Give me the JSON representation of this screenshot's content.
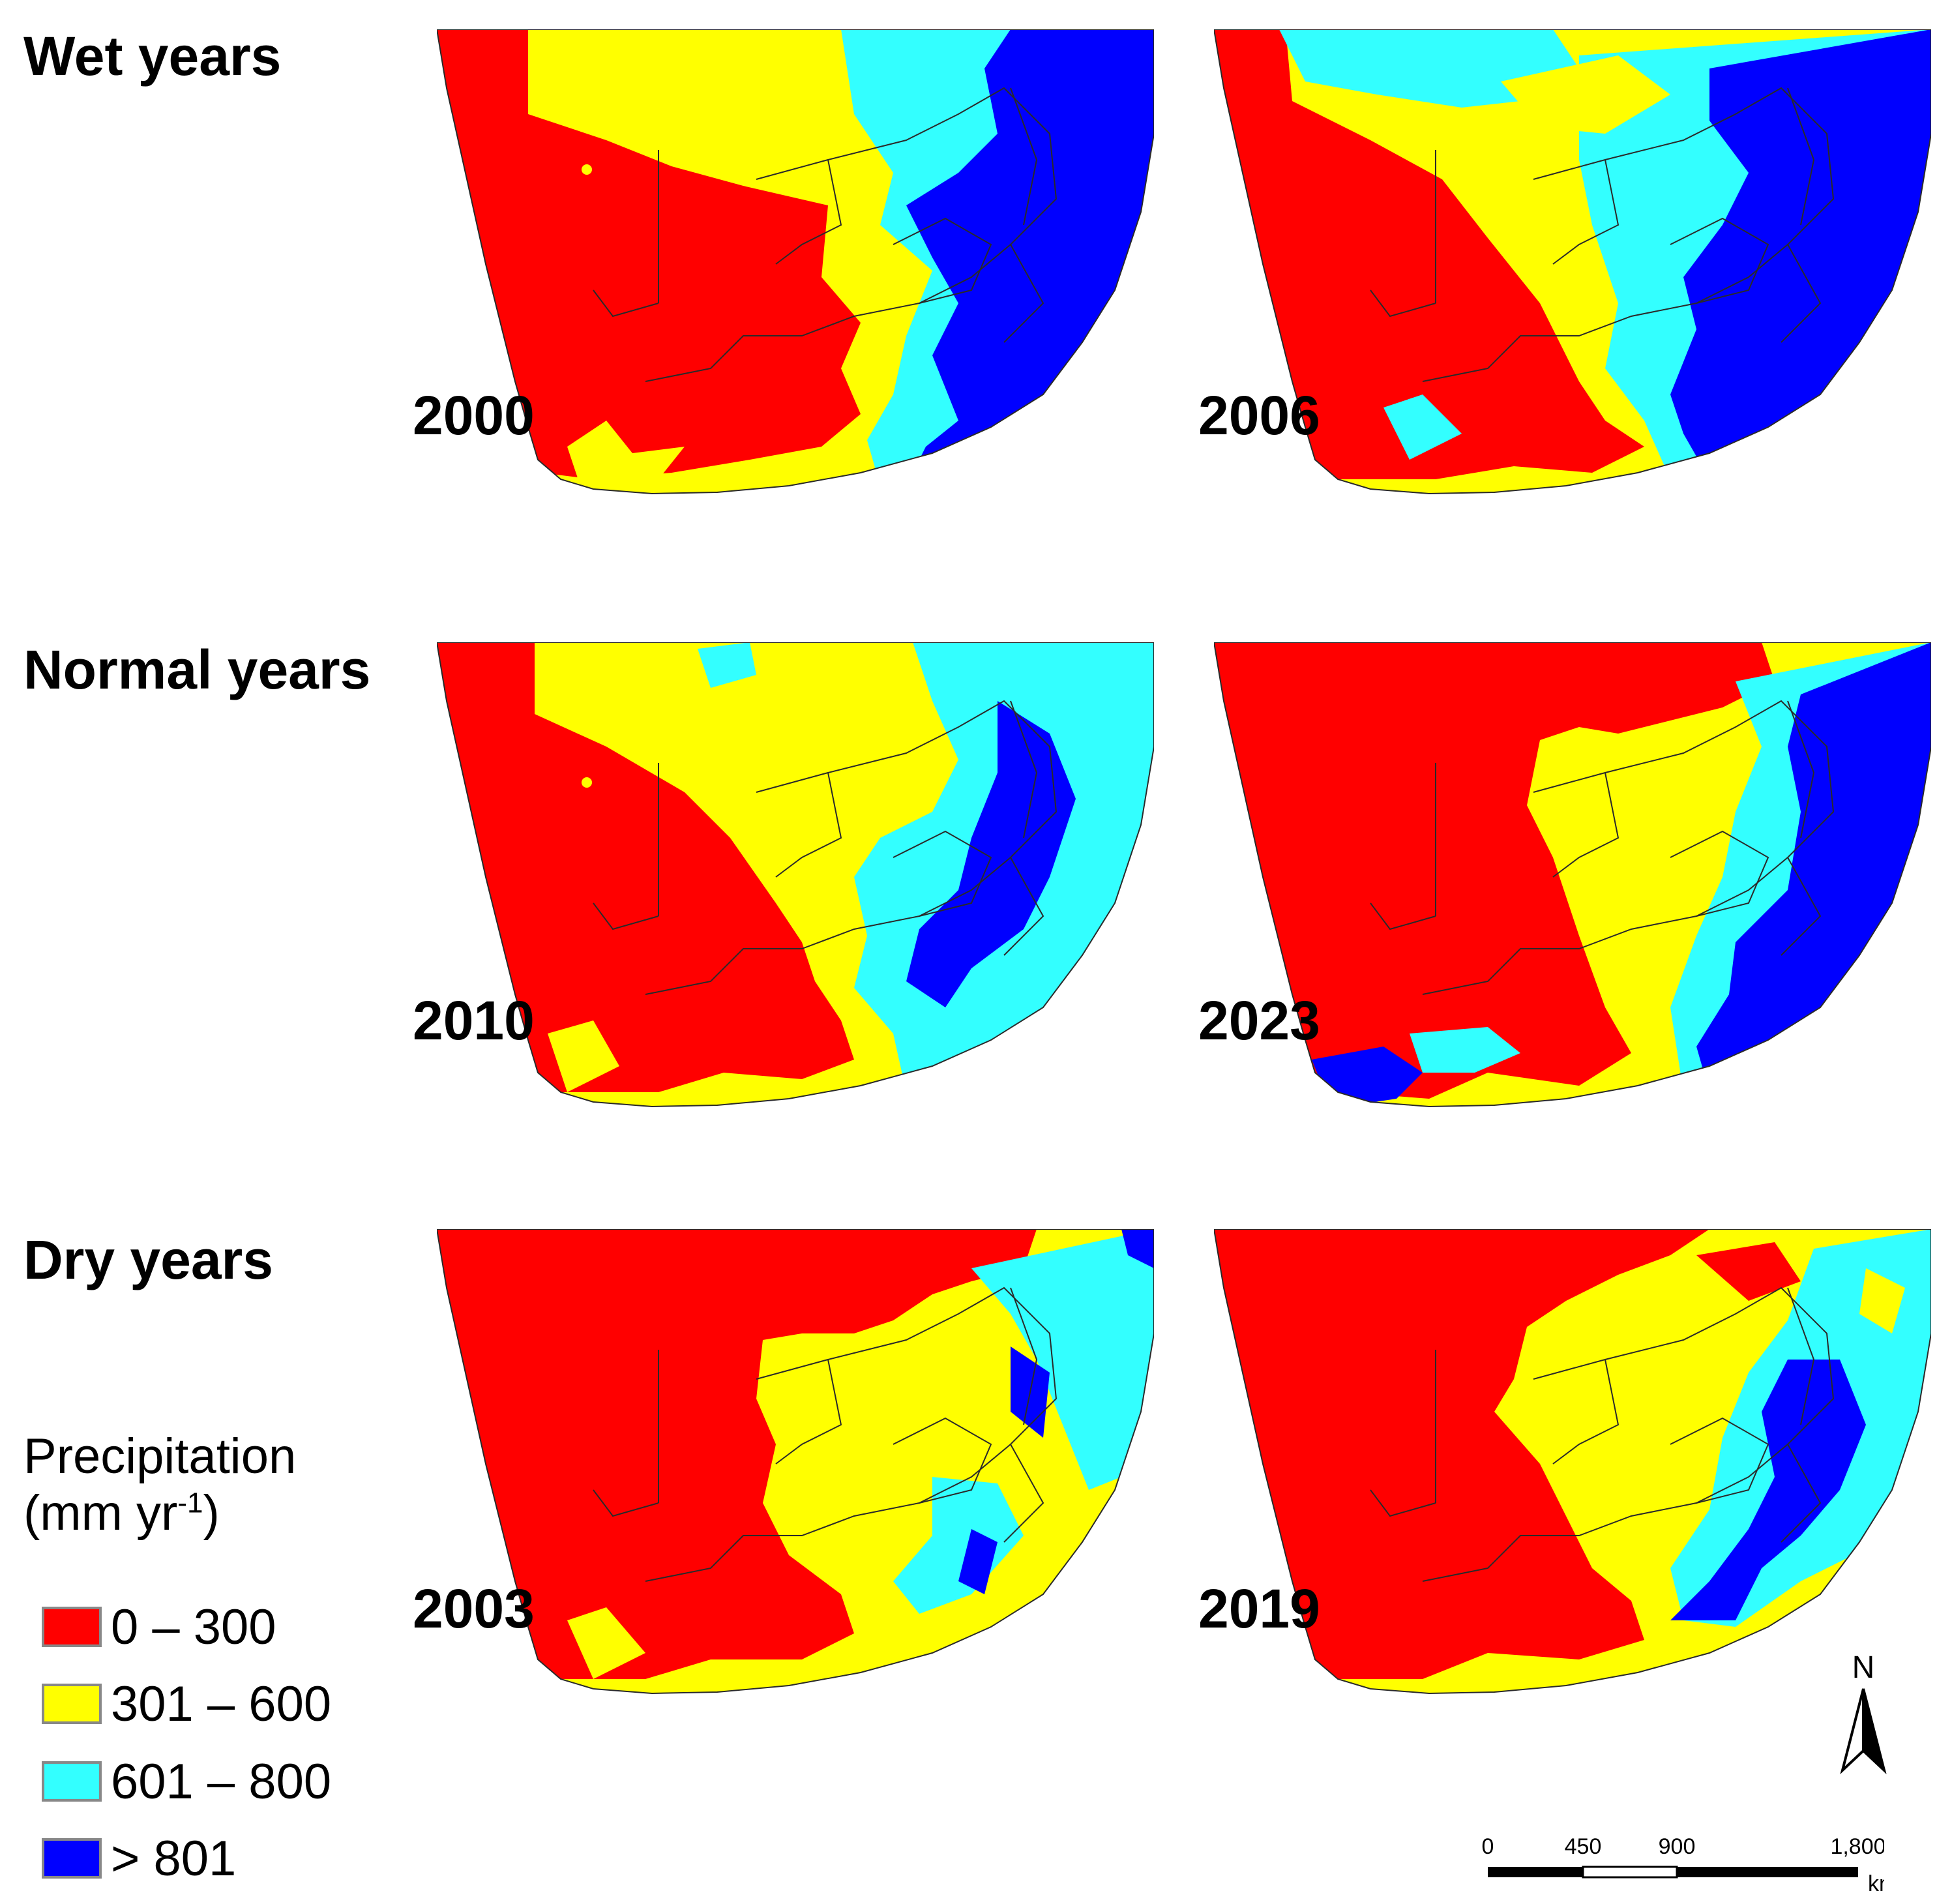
{
  "row_labels": {
    "wet": "Wet years",
    "normal": "Normal years",
    "dry": "Dry years"
  },
  "maps": [
    {
      "year": "2000",
      "category": "Wet years"
    },
    {
      "year": "2006",
      "category": "Wet years"
    },
    {
      "year": "2010",
      "category": "Normal years"
    },
    {
      "year": "2023",
      "category": "Normal years"
    },
    {
      "year": "2003",
      "category": "Dry years"
    },
    {
      "year": "2019",
      "category": "Dry years"
    }
  ],
  "legend": {
    "title_line1": "Precipitation",
    "title_line2_prefix": "(mm yr",
    "title_line2_sup": "-1",
    "title_line2_suffix": ")",
    "items": [
      {
        "label": "0 – 300",
        "color": "#ff0000"
      },
      {
        "label": "301 – 600",
        "color": "#ffff00"
      },
      {
        "label": "601 – 800",
        "color": "#33ffff"
      },
      {
        "label": "> 801",
        "color": "#0000ff"
      }
    ]
  },
  "north_arrow": {
    "label": "N"
  },
  "scale_bar": {
    "ticks": [
      "0",
      "450",
      "900",
      "1,800"
    ],
    "unit": "km"
  },
  "colors": {
    "red": "#ff0000",
    "yellow": "#ffff00",
    "cyan": "#33ffff",
    "blue": "#0000ff",
    "border": "#2a2a2a"
  }
}
